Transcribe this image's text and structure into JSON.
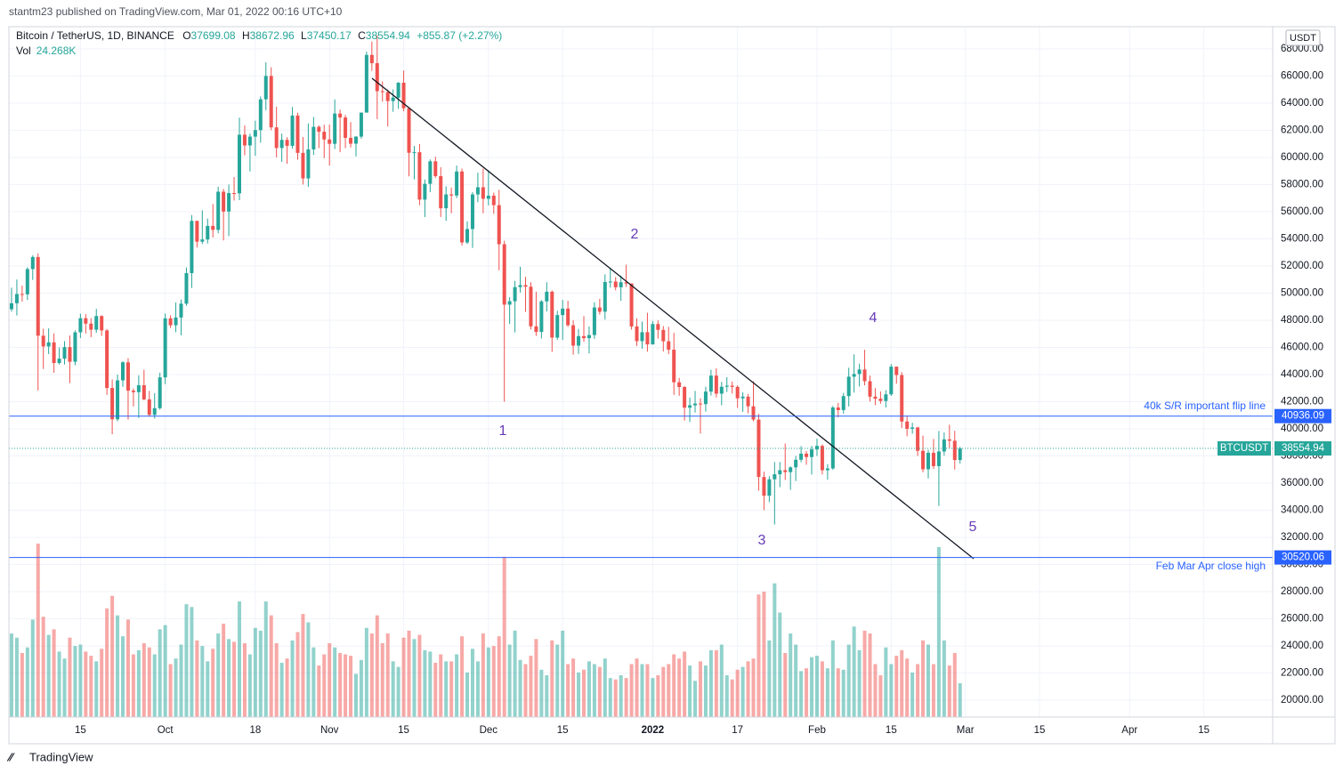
{
  "header": {
    "published": "stantm23 published on TradingView.com, Mar 01, 2022 00:16 UTC+10",
    "footer": "TradingView"
  },
  "chart_data": {
    "type": "candlestick",
    "title": "Bitcoin / TetherUS, 1D, BINANCE",
    "ohlc_letters": [
      "O",
      "H",
      "L",
      "C"
    ],
    "change_label": "+855.87 (+2.27%)",
    "currency": "USDT",
    "symbol": "BTCUSDT",
    "up_color": "#26a69a",
    "down_color": "#ef5350",
    "grid": true,
    "candles": [
      [
        48810,
        50400,
        48630,
        49250
      ],
      [
        49250,
        51000,
        48350,
        49930
      ],
      [
        49930,
        50560,
        49370,
        49910
      ],
      [
        49910,
        51900,
        49500,
        51770
      ],
      [
        51770,
        52780,
        50970,
        52660
      ],
      [
        52660,
        52920,
        42830,
        46860
      ],
      [
        46860,
        47380,
        44410,
        46070
      ],
      [
        46070,
        47400,
        45510,
        46370
      ],
      [
        46370,
        47030,
        44130,
        44850
      ],
      [
        44850,
        45990,
        44740,
        45170
      ],
      [
        45170,
        46460,
        44740,
        46020
      ],
      [
        46020,
        46880,
        43370,
        44940
      ],
      [
        44940,
        47250,
        44680,
        47110
      ],
      [
        47110,
        48490,
        46690,
        48150
      ],
      [
        48150,
        48450,
        47020,
        47750
      ],
      [
        47750,
        48150,
        46750,
        47300
      ],
      [
        47300,
        48840,
        47070,
        48310
      ],
      [
        48310,
        48370,
        46850,
        47250
      ],
      [
        47250,
        47350,
        42500,
        43010
      ],
      [
        43010,
        43640,
        39600,
        40700
      ],
      [
        40700,
        44000,
        40560,
        43570
      ],
      [
        43570,
        44980,
        43090,
        44900
      ],
      [
        44900,
        45200,
        40680,
        42810
      ],
      [
        42810,
        42970,
        41650,
        42700
      ],
      [
        42700,
        43940,
        40800,
        43210
      ],
      [
        43210,
        44350,
        42100,
        42170
      ],
      [
        42170,
        42790,
        40890,
        41030
      ],
      [
        41030,
        42630,
        40760,
        41520
      ],
      [
        41520,
        44130,
        41410,
        43790
      ],
      [
        43790,
        48500,
        43290,
        48140
      ],
      [
        48140,
        48360,
        47430,
        47630
      ],
      [
        47630,
        49300,
        47120,
        48200
      ],
      [
        48200,
        49530,
        46890,
        49220
      ],
      [
        49220,
        51890,
        49070,
        51470
      ],
      [
        51470,
        55750,
        50380,
        55320
      ],
      [
        55320,
        55330,
        53360,
        53790
      ],
      [
        53790,
        56100,
        53620,
        53950
      ],
      [
        53950,
        55490,
        53660,
        54950
      ],
      [
        54950,
        56560,
        54100,
        54660
      ],
      [
        54660,
        57840,
        54410,
        57470
      ],
      [
        57470,
        57680,
        53880,
        56010
      ],
      [
        56010,
        58000,
        54200,
        57370
      ],
      [
        57370,
        58550,
        56820,
        57350
      ],
      [
        57350,
        62930,
        56850,
        61670
      ],
      [
        61670,
        62350,
        60150,
        60880
      ],
      [
        60880,
        61750,
        58960,
        61530
      ],
      [
        61530,
        62700,
        60120,
        62010
      ],
      [
        62010,
        64490,
        61080,
        64280
      ],
      [
        64280,
        67000,
        63480,
        66000
      ],
      [
        66000,
        66640,
        62000,
        62210
      ],
      [
        62210,
        63730,
        60000,
        60690
      ],
      [
        60690,
        61750,
        59670,
        61290
      ],
      [
        61290,
        61490,
        59530,
        60850
      ],
      [
        60850,
        63710,
        60650,
        63080
      ],
      [
        63080,
        63290,
        59820,
        60330
      ],
      [
        60330,
        61500,
        58000,
        58450
      ],
      [
        58450,
        62500,
        57820,
        60590
      ],
      [
        60590,
        62980,
        60170,
        62250
      ],
      [
        62250,
        62360,
        60680,
        61890
      ],
      [
        61890,
        62410,
        59940,
        61320
      ],
      [
        61320,
        62420,
        59400,
        61000
      ],
      [
        61000,
        64270,
        60620,
        63230
      ],
      [
        63230,
        63520,
        60380,
        62940
      ],
      [
        62940,
        63130,
        60680,
        61440
      ],
      [
        61440,
        62600,
        60730,
        61010
      ],
      [
        61010,
        61560,
        60070,
        61530
      ],
      [
        61530,
        63290,
        61380,
        63300
      ],
      [
        63300,
        67790,
        63300,
        67550
      ],
      [
        67550,
        68530,
        66380,
        66940
      ],
      [
        66940,
        69000,
        62820,
        64880
      ],
      [
        64880,
        65600,
        64100,
        64810
      ],
      [
        64810,
        65000,
        62280,
        64150
      ],
      [
        64150,
        65000,
        63360,
        64400
      ],
      [
        64400,
        65550,
        63580,
        65500
      ],
      [
        65500,
        66400,
        63400,
        63620
      ],
      [
        63620,
        63620,
        58600,
        60340
      ],
      [
        60340,
        60840,
        58380,
        60380
      ],
      [
        60380,
        60980,
        56470,
        56890
      ],
      [
        56890,
        58370,
        55600,
        58050
      ],
      [
        58050,
        59850,
        57440,
        59710
      ],
      [
        59710,
        60050,
        58480,
        58620
      ],
      [
        58620,
        59270,
        55610,
        56250
      ],
      [
        56250,
        57870,
        55320,
        57270
      ],
      [
        57270,
        57770,
        55880,
        57190
      ],
      [
        57190,
        59400,
        57000,
        58960
      ],
      [
        58960,
        59180,
        53500,
        53730
      ],
      [
        53730,
        55280,
        53610,
        54720
      ],
      [
        54720,
        57440,
        53330,
        57270
      ],
      [
        57270,
        58870,
        56700,
        57800
      ],
      [
        57800,
        59170,
        55880,
        56950
      ],
      [
        56950,
        59050,
        56460,
        57180
      ],
      [
        57180,
        57400,
        55840,
        56480
      ],
      [
        56480,
        57600,
        51680,
        53600
      ],
      [
        53600,
        53860,
        42000,
        49150
      ],
      [
        49150,
        49700,
        47720,
        49400
      ],
      [
        49400,
        50900,
        47100,
        50440
      ],
      [
        50440,
        51940,
        50040,
        50590
      ],
      [
        50590,
        51200,
        48620,
        50470
      ],
      [
        50470,
        50800,
        47320,
        47550
      ],
      [
        47550,
        50100,
        46850,
        47140
      ],
      [
        47140,
        49490,
        46650,
        49390
      ],
      [
        49390,
        50800,
        48650,
        50100
      ],
      [
        50100,
        50200,
        45670,
        46720
      ],
      [
        46720,
        48700,
        46550,
        48380
      ],
      [
        48380,
        49500,
        46550,
        48860
      ],
      [
        48860,
        49430,
        47510,
        47630
      ],
      [
        47630,
        47990,
        45460,
        46130
      ],
      [
        46130,
        47360,
        45520,
        46830
      ],
      [
        46830,
        48300,
        46400,
        46680
      ],
      [
        46680,
        47540,
        45560,
        46910
      ],
      [
        46910,
        49330,
        46630,
        48940
      ],
      [
        48940,
        49580,
        48420,
        48630
      ],
      [
        48630,
        51380,
        48050,
        50820
      ],
      [
        50820,
        51870,
        50400,
        50850
      ],
      [
        50850,
        51180,
        50200,
        50430
      ],
      [
        50430,
        51290,
        49440,
        50800
      ],
      [
        50800,
        52090,
        50450,
        50710
      ],
      [
        50710,
        50710,
        47310,
        47540
      ],
      [
        47540,
        48140,
        46100,
        46460
      ],
      [
        46460,
        47900,
        45900,
        47120
      ],
      [
        47120,
        48550,
        45680,
        46220
      ],
      [
        46220,
        47950,
        46210,
        47720
      ],
      [
        47720,
        47990,
        46650,
        47290
      ],
      [
        47290,
        47570,
        45700,
        46450
      ],
      [
        46450,
        47510,
        45500,
        45830
      ],
      [
        45830,
        47070,
        42500,
        43430
      ],
      [
        43430,
        43750,
        42430,
        43080
      ],
      [
        43080,
        43150,
        40610,
        41560
      ],
      [
        41560,
        42300,
        40500,
        41730
      ],
      [
        41730,
        42790,
        41200,
        41860
      ],
      [
        41860,
        42250,
        39650,
        41820
      ],
      [
        41820,
        43100,
        41270,
        42740
      ],
      [
        42740,
        44350,
        42450,
        43920
      ],
      [
        43920,
        44460,
        42310,
        42590
      ],
      [
        42590,
        43460,
        41730,
        43100
      ],
      [
        43100,
        43800,
        42710,
        43180
      ],
      [
        43180,
        43480,
        42600,
        43090
      ],
      [
        43090,
        43200,
        41540,
        42250
      ],
      [
        42250,
        42690,
        41250,
        42370
      ],
      [
        42370,
        42570,
        41140,
        41660
      ],
      [
        41660,
        43500,
        40550,
        40680
      ],
      [
        40680,
        41100,
        35440,
        36450
      ],
      [
        36450,
        36840,
        34010,
        35070
      ],
      [
        35070,
        36500,
        34600,
        36280
      ],
      [
        36280,
        37550,
        32950,
        36650
      ],
      [
        36650,
        37550,
        35700,
        36950
      ],
      [
        36950,
        38920,
        36230,
        36810
      ],
      [
        36810,
        37230,
        35500,
        37160
      ],
      [
        37160,
        38000,
        36150,
        37720
      ],
      [
        37720,
        38720,
        37540,
        38170
      ],
      [
        38170,
        38360,
        37350,
        37920
      ],
      [
        37920,
        38740,
        36630,
        38480
      ],
      [
        38480,
        39270,
        38000,
        38740
      ],
      [
        38740,
        38850,
        36640,
        36950
      ],
      [
        36950,
        37390,
        36250,
        37080
      ],
      [
        37080,
        41690,
        36980,
        41570
      ],
      [
        41570,
        41910,
        40850,
        41380
      ],
      [
        41380,
        42650,
        41120,
        42410
      ],
      [
        42410,
        44500,
        41650,
        43840
      ],
      [
        43840,
        45490,
        42670,
        44040
      ],
      [
        44040,
        44800,
        43120,
        44370
      ],
      [
        44370,
        45820,
        43200,
        43510
      ],
      [
        43510,
        43920,
        42010,
        42370
      ],
      [
        42370,
        43000,
        41750,
        42220
      ],
      [
        42220,
        42750,
        41850,
        42050
      ],
      [
        42050,
        42850,
        41570,
        42540
      ],
      [
        42540,
        44770,
        42430,
        44580
      ],
      [
        44580,
        44580,
        43320,
        43960
      ],
      [
        43960,
        44180,
        40070,
        40540
      ],
      [
        40540,
        40970,
        39450,
        40000
      ],
      [
        40000,
        40450,
        39640,
        40100
      ],
      [
        40100,
        40150,
        38000,
        38380
      ],
      [
        38380,
        39500,
        36800,
        37020
      ],
      [
        37020,
        38450,
        36350,
        38230
      ],
      [
        38230,
        39250,
        37050,
        37250
      ],
      [
        37250,
        39840,
        34320,
        38330
      ],
      [
        38330,
        39730,
        38020,
        39220
      ],
      [
        39220,
        40300,
        38600,
        39120
      ],
      [
        39120,
        39850,
        37000,
        37700
      ],
      [
        37699.08,
        38672.96,
        37450.17,
        38554.94
      ]
    ],
    "volume": {
      "name": "Vol",
      "last_label": "24.268K",
      "values": [
        60,
        57,
        46,
        50,
        70,
        124.5,
        72,
        59,
        63,
        47,
        42,
        57,
        51,
        52,
        47,
        44,
        40,
        49,
        78,
        87,
        73,
        58,
        70,
        45,
        48,
        53,
        50,
        45,
        63,
        66,
        38,
        42,
        52,
        81,
        79,
        55,
        51,
        40,
        49,
        60,
        67,
        56,
        54,
        83,
        53,
        45,
        64,
        62,
        83,
        73,
        53,
        39,
        42,
        55,
        61,
        74,
        68,
        50,
        37,
        45,
        53,
        50,
        46,
        45,
        44,
        31,
        41,
        64,
        60,
        73,
        53,
        60,
        40,
        36,
        57,
        62,
        56,
        59,
        48,
        47,
        39,
        45,
        40,
        40,
        45,
        58,
        32,
        49,
        40,
        60,
        50,
        51,
        58,
        115,
        52,
        62,
        41,
        38,
        44,
        56,
        34,
        30,
        55,
        52,
        62,
        38,
        42,
        32,
        34,
        40,
        38,
        36,
        42,
        28,
        27,
        30,
        28,
        38,
        42,
        38,
        38,
        28,
        30,
        36,
        38,
        45,
        42,
        47,
        37,
        26,
        40,
        37,
        48,
        48,
        52,
        30,
        27,
        34,
        36,
        40,
        42,
        88,
        90,
        55,
        96,
        75,
        46,
        60,
        52,
        33,
        35,
        43,
        44,
        40,
        35,
        55,
        35,
        34,
        52,
        65,
        48,
        62,
        60,
        38,
        30,
        50,
        38,
        44,
        48,
        42,
        32,
        38,
        55,
        52,
        38,
        122,
        55,
        37,
        46,
        24.268
      ]
    },
    "levels": [
      {
        "value": 40936.09,
        "label": "40k S/R important flip line",
        "color": "#2962ff"
      },
      {
        "value": 30520.06,
        "label": "Feb Mar Apr close high",
        "color": "#2962ff"
      }
    ],
    "waves": [
      "1",
      "2",
      "3",
      "4",
      "5"
    ],
    "xlim": [
      -0.5,
      238
    ],
    "xticks": [
      {
        "value": 13,
        "label": "15"
      },
      {
        "value": 29,
        "label": "Oct"
      },
      {
        "value": 46,
        "label": "18"
      },
      {
        "value": 60,
        "label": "Nov"
      },
      {
        "value": 74,
        "label": "15"
      },
      {
        "value": 90,
        "label": "Dec"
      },
      {
        "value": 104,
        "label": "15"
      },
      {
        "value": 121,
        "label": "2022"
      },
      {
        "value": 137,
        "label": "17"
      },
      {
        "value": 152,
        "label": "Feb"
      },
      {
        "value": 166,
        "label": "15"
      },
      {
        "value": 180,
        "label": "Mar"
      },
      {
        "value": 194,
        "label": "15"
      },
      {
        "value": 211,
        "label": "Apr"
      },
      {
        "value": 225,
        "label": "15"
      }
    ],
    "ylim": [
      18760,
      69630
    ],
    "yticks": [
      {
        "value": 20000,
        "label": "20000.00"
      },
      {
        "value": 22000,
        "label": "22000.00"
      },
      {
        "value": 24000,
        "label": "24000.00"
      },
      {
        "value": 26000,
        "label": "26000.00"
      },
      {
        "value": 28000,
        "label": "28000.00"
      },
      {
        "value": 30000,
        "label": "30000.00"
      },
      {
        "value": 32000,
        "label": "32000.00"
      },
      {
        "value": 34000,
        "label": "34000.00"
      },
      {
        "value": 36000,
        "label": "36000.00"
      },
      {
        "value": 38000,
        "label": "38000.00"
      },
      {
        "value": 40000,
        "label": "40000.00"
      },
      {
        "value": 42000,
        "label": "42000.00"
      },
      {
        "value": 44000,
        "label": "44000.00"
      },
      {
        "value": 46000,
        "label": "46000.00"
      },
      {
        "value": 48000,
        "label": "48000.00"
      },
      {
        "value": 50000,
        "label": "50000.00"
      },
      {
        "value": 52000,
        "label": "52000.00"
      },
      {
        "value": 54000,
        "label": "54000.00"
      },
      {
        "value": 56000,
        "label": "56000.00"
      },
      {
        "value": 58000,
        "label": "58000.00"
      },
      {
        "value": 60000,
        "label": "60000.00"
      },
      {
        "value": 62000,
        "label": "62000.00"
      },
      {
        "value": 64000,
        "label": "64000.00"
      },
      {
        "value": 66000,
        "label": "66000.00"
      },
      {
        "value": 68000,
        "label": "68000.00"
      }
    ]
  }
}
